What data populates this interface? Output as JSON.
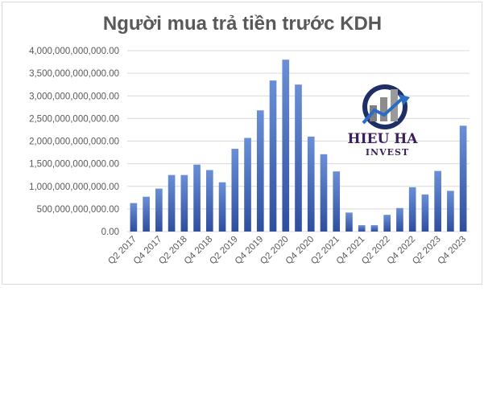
{
  "chart_data": {
    "type": "bar",
    "title": "Người mua trả tiền trước KDH",
    "xlabel": "",
    "ylabel": "",
    "ylim": [
      0,
      4000000000000
    ],
    "y_ticks": [
      {
        "value": 0,
        "label": "0.00"
      },
      {
        "value": 500000000000,
        "label": "500,000,000,000.00"
      },
      {
        "value": 1000000000000,
        "label": "1,000,000,000,000.00"
      },
      {
        "value": 1500000000000,
        "label": "1,500,000,000,000.00"
      },
      {
        "value": 2000000000000,
        "label": "2,000,000,000,000.00"
      },
      {
        "value": 2500000000000,
        "label": "2,500,000,000,000.00"
      },
      {
        "value": 3000000000000,
        "label": "3,000,000,000,000.00"
      },
      {
        "value": 3500000000000,
        "label": "3,500,000,000,000.00"
      },
      {
        "value": 4000000000000,
        "label": "4,000,000,000,000.00"
      }
    ],
    "categories": [
      "Q2 2017",
      "Q3 2017",
      "Q4 2017",
      "Q1 2018",
      "Q2 2018",
      "Q3 2018",
      "Q4 2018",
      "Q1 2019",
      "Q2 2019",
      "Q3 2019",
      "Q4 2019",
      "Q1 2020",
      "Q2 2020",
      "Q3 2020",
      "Q4 2020",
      "Q1 2021",
      "Q2 2021",
      "Q3 2021",
      "Q4 2021",
      "Q1 2022",
      "Q2 2022",
      "Q3 2022",
      "Q4 2022",
      "Q1 2023",
      "Q2 2023",
      "Q3 2023",
      "Q4 2023"
    ],
    "shown_tick_labels": [
      "Q2 2017",
      "Q4 2017",
      "Q2 2018",
      "Q4 2018",
      "Q2 2019",
      "Q4 2019",
      "Q2 2020",
      "Q4 2020",
      "Q2 2021",
      "Q4 2021",
      "Q2 2022",
      "Q4 2022",
      "Q2 2023",
      "Q4 2023"
    ],
    "values": [
      630000000000,
      770000000000,
      950000000000,
      1250000000000,
      1250000000000,
      1480000000000,
      1360000000000,
      1090000000000,
      1830000000000,
      2070000000000,
      2680000000000,
      3340000000000,
      3800000000000,
      3250000000000,
      2100000000000,
      1710000000000,
      1330000000000,
      420000000000,
      140000000000,
      140000000000,
      370000000000,
      520000000000,
      980000000000,
      820000000000,
      1340000000000,
      900000000000,
      2340000000000
    ],
    "grid": true,
    "legend": "none",
    "colors": {
      "bar_top": "#6a8fd6",
      "bar_bottom": "#2f4f9e",
      "title": "#595959",
      "text": "#595959",
      "grid": "#d9d9d9"
    }
  },
  "watermark": {
    "line1": "HIEU HA",
    "line2": "INVEST",
    "icon": "growth-chart-logo-icon",
    "colors": {
      "navy": "#1d2f66",
      "gray": "#8c8c8c",
      "purple": "#3b1f5c",
      "blue": "#2b6cc4"
    }
  }
}
